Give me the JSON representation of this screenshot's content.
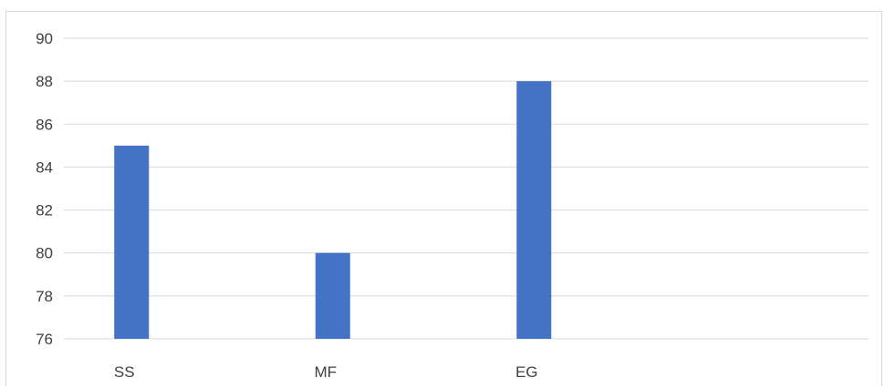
{
  "chart_data": {
    "type": "bar",
    "categories": [
      "SS",
      "MF",
      "EG",
      ""
    ],
    "series": [
      {
        "values": [
          85,
          80,
          88,
          null
        ],
        "color": "#4472c4"
      }
    ],
    "y_ticks": [
      "76",
      "78",
      "80",
      "82",
      "84",
      "86",
      "88",
      "90"
    ],
    "ylim": [
      76,
      90
    ],
    "grid": true,
    "legend": "none",
    "gridline_color": "#d9d9d9",
    "axis_label_color": "#404040"
  }
}
